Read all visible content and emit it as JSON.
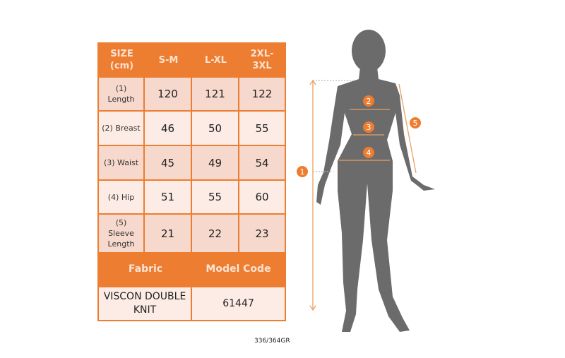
{
  "size_table": {
    "header": [
      "SIZE (cm)",
      "S-M",
      "L-XL",
      "2XL-3XL"
    ],
    "rows": [
      {
        "label": "(1) Length",
        "values": [
          "120",
          "121",
          "122"
        ]
      },
      {
        "label": "(2) Breast",
        "values": [
          "46",
          "50",
          "55"
        ]
      },
      {
        "label": "(3) Waist",
        "values": [
          "45",
          "49",
          "54"
        ]
      },
      {
        "label": "(4) Hip",
        "values": [
          "51",
          "55",
          "60"
        ]
      },
      {
        "label": "(5) Sleeve Length",
        "values": [
          "21",
          "22",
          "23"
        ]
      }
    ],
    "fabric_label": "Fabric",
    "model_code_label": "Model Code",
    "fabric_value": "VISCON DOUBLE KNIT",
    "model_code_value": "61447"
  },
  "figure": {
    "markers": [
      "1",
      "2",
      "3",
      "4",
      "5"
    ],
    "accent_color": "#ed7d31",
    "silhouette_color": "#6b6b6b"
  },
  "product_code": "336/364GR",
  "colors": {
    "header": "#ed7d31",
    "row_dark": "#f6d8cc",
    "row_light": "#fcece5"
  }
}
